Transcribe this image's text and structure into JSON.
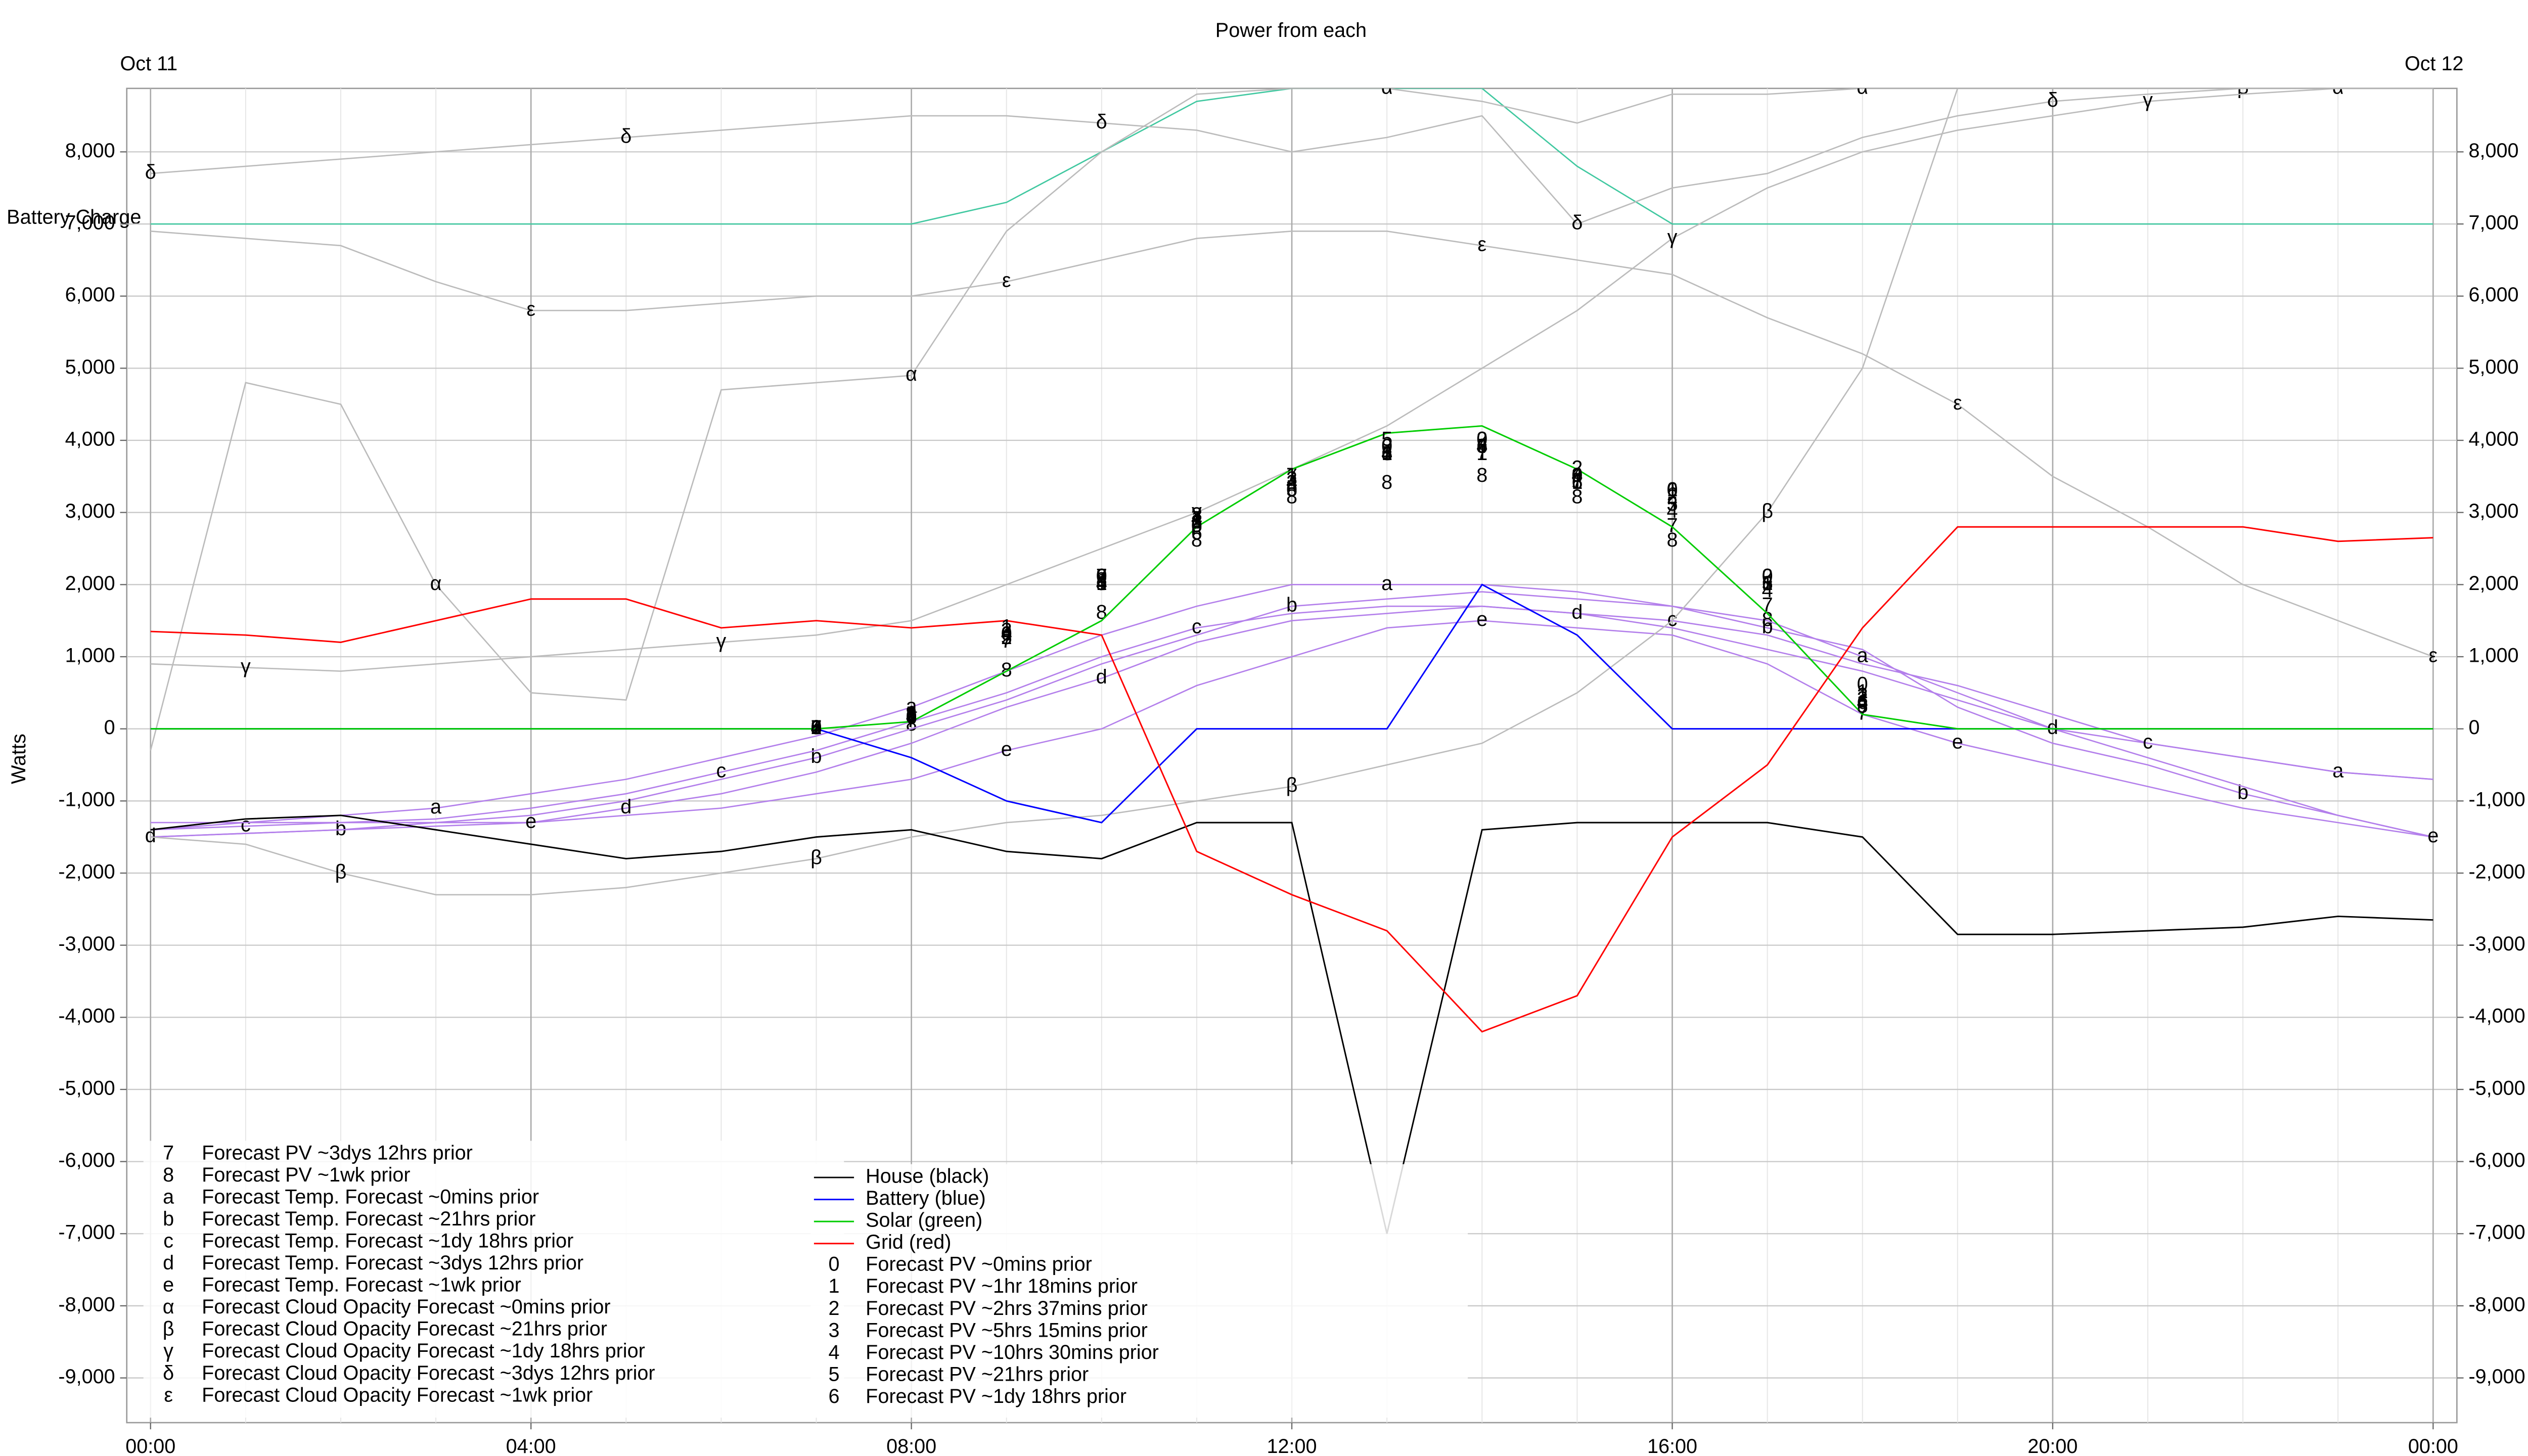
{
  "chart_data": {
    "type": "line",
    "title": "Power from each",
    "date_labels": [
      "Oct 11",
      "Oct 12"
    ],
    "y_label": "Watts",
    "x": [
      0,
      1,
      2,
      3,
      4,
      5,
      6,
      7,
      8,
      9,
      10,
      11,
      12,
      13,
      14,
      15,
      16,
      17,
      18,
      19,
      20,
      21,
      22,
      23,
      24
    ],
    "xlim": [
      -0.25,
      24.25
    ],
    "xticks": [
      {
        "value": 0,
        "label": "00:00"
      },
      {
        "value": 4,
        "label": "04:00"
      },
      {
        "value": 8,
        "label": "08:00"
      },
      {
        "value": 12,
        "label": "12:00"
      },
      {
        "value": 16,
        "label": "16:00"
      },
      {
        "value": 20,
        "label": "20:00"
      },
      {
        "value": 24,
        "label": "00:00"
      }
    ],
    "ylim": [
      -9620,
      8880
    ],
    "yticks": [
      {
        "value": -9000,
        "label": "-9,000"
      },
      {
        "value": -8000,
        "label": "-8,000"
      },
      {
        "value": -7000,
        "label": "-7,000"
      },
      {
        "value": -6000,
        "label": "-6,000"
      },
      {
        "value": -5000,
        "label": "-5,000"
      },
      {
        "value": -4000,
        "label": "-4,000"
      },
      {
        "value": -3000,
        "label": "-3,000"
      },
      {
        "value": -2000,
        "label": "-2,000"
      },
      {
        "value": -1000,
        "label": "-1,000"
      },
      0,
      {
        "value": 1000,
        "label": "1,000"
      },
      {
        "value": 2000,
        "label": "2,000"
      },
      {
        "value": 3000,
        "label": "3,000"
      },
      {
        "value": 4000,
        "label": "4,000"
      },
      {
        "value": 5000,
        "label": "5,000"
      },
      {
        "value": 6000,
        "label": "6,000"
      },
      {
        "value": 7000,
        "label": "7,000"
      },
      {
        "value": 8000,
        "label": "8,000"
      }
    ],
    "grid": true,
    "battery_charge": {
      "label": "Battery Charge",
      "color": "#40c8a0",
      "values": [
        7000,
        7000,
        7000,
        7000,
        7000,
        7000,
        7000,
        7000,
        7000,
        7300,
        8000,
        8700,
        8880,
        8880,
        8880,
        7800,
        7000,
        7000,
        7000,
        7000,
        7000,
        7000,
        7000,
        7000,
        7000
      ]
    },
    "series": [
      {
        "name": "Forecast PV ~3dys 12hrs prior",
        "symbol": "7",
        "color": "#000000",
        "style": "symbol",
        "values": [
          null,
          null,
          null,
          null,
          null,
          null,
          null,
          0,
          100,
          1200,
          2100,
          2900,
          3500,
          3800,
          3800,
          3400,
          2800,
          1700,
          200,
          null,
          null,
          null,
          null,
          null,
          null
        ]
      },
      {
        "name": "Forecast PV ~1wk prior",
        "symbol": "8",
        "color": "#000000",
        "style": "symbol",
        "values": [
          null,
          null,
          null,
          null,
          null,
          null,
          null,
          0,
          50,
          800,
          1600,
          2600,
          3200,
          3400,
          3500,
          3200,
          2600,
          1500,
          300,
          null,
          null,
          null,
          null,
          null,
          null
        ]
      },
      {
        "name": "Forecast Temp. Forecast ~0mins prior",
        "symbol": "a",
        "color": "#b37feb",
        "style": "line",
        "values": [
          -1400,
          -1300,
          -1200,
          -1100,
          -900,
          -700,
          -400,
          -100,
          300,
          800,
          1300,
          1700,
          2000,
          2000,
          2000,
          1900,
          1700,
          1500,
          1000,
          500,
          0,
          -200,
          -400,
          -600,
          -700
        ]
      },
      {
        "name": "Forecast Temp. Forecast ~21hrs prior",
        "symbol": "b",
        "color": "#b37feb",
        "style": "line",
        "values": [
          -1500,
          -1450,
          -1400,
          -1300,
          -1200,
          -1000,
          -700,
          -400,
          0,
          400,
          900,
          1300,
          1700,
          1800,
          1900,
          1800,
          1700,
          1400,
          1100,
          300,
          -200,
          -500,
          -900,
          -1200,
          -1500
        ]
      },
      {
        "name": "Forecast Temp. Forecast ~1dy 18hrs prior",
        "symbol": "c",
        "color": "#b37feb",
        "style": "line",
        "values": [
          -1400,
          -1350,
          -1300,
          -1250,
          -1100,
          -900,
          -600,
          -300,
          100,
          500,
          1000,
          1400,
          1600,
          1700,
          1700,
          1600,
          1500,
          1300,
          900,
          600,
          200,
          -200,
          -400,
          -600,
          -700
        ]
      },
      {
        "name": "Forecast Temp. Forecast ~3dys 12hrs prior",
        "symbol": "d",
        "color": "#b37feb",
        "style": "line",
        "values": [
          -1500,
          -1450,
          -1400,
          -1350,
          -1300,
          -1100,
          -900,
          -600,
          -200,
          300,
          700,
          1200,
          1500,
          1600,
          1700,
          1600,
          1400,
          1100,
          800,
          400,
          0,
          -400,
          -800,
          -1200,
          -1500
        ]
      },
      {
        "name": "Forecast Temp. Forecast ~1wk prior",
        "symbol": "e",
        "color": "#b37feb",
        "style": "line",
        "values": [
          -1300,
          -1300,
          -1300,
          -1300,
          -1300,
          -1200,
          -1100,
          -900,
          -700,
          -300,
          0,
          600,
          1000,
          1400,
          1500,
          1400,
          1300,
          900,
          200,
          -200,
          -500,
          -800,
          -1100,
          -1300,
          -1500
        ]
      },
      {
        "name": "Forecast Cloud Opacity Forecast ~0mins prior",
        "symbol": "α",
        "color": "#bbbbbb",
        "style": "line",
        "values": [
          -300,
          4800,
          4500,
          2000,
          500,
          400,
          4700,
          4800,
          4900,
          6900,
          8000,
          8800,
          8880,
          8880,
          8700,
          8400,
          8800,
          8800,
          8880,
          8880,
          8880,
          8880,
          8880,
          8880,
          8880
        ]
      },
      {
        "name": "Forecast Cloud Opacity Forecast ~21hrs prior",
        "symbol": "β",
        "color": "#bbbbbb",
        "style": "line",
        "values": [
          -1500,
          -1600,
          -2000,
          -2300,
          -2300,
          -2200,
          -2000,
          -1800,
          -1500,
          -1300,
          -1200,
          -1000,
          -800,
          -500,
          -200,
          500,
          1500,
          3000,
          5000,
          8880,
          8880,
          8880,
          8880,
          8880,
          8880
        ]
      },
      {
        "name": "Forecast Cloud Opacity Forecast ~1dy 18hrs prior",
        "symbol": "γ",
        "color": "#bbbbbb",
        "style": "line",
        "values": [
          900,
          850,
          800,
          900,
          1000,
          1100,
          1200,
          1300,
          1500,
          2000,
          2500,
          3000,
          3600,
          4200,
          5000,
          5800,
          6800,
          7500,
          8000,
          8300,
          8500,
          8700,
          8800,
          8880,
          8880
        ]
      },
      {
        "name": "Forecast Cloud Opacity Forecast ~3dys 12hrs prior",
        "symbol": "δ",
        "color": "#bbbbbb",
        "style": "line",
        "values": [
          7700,
          7800,
          7900,
          8000,
          8100,
          8200,
          8300,
          8400,
          8500,
          8500,
          8400,
          8300,
          8000,
          8200,
          8500,
          7000,
          7500,
          7700,
          8200,
          8500,
          8700,
          8800,
          8880,
          8880,
          8880
        ]
      },
      {
        "name": "Forecast Cloud Opacity Forecast ~1wk prior",
        "symbol": "ε",
        "color": "#bbbbbb",
        "style": "line",
        "values": [
          6900,
          6800,
          6700,
          6200,
          5800,
          5800,
          5900,
          6000,
          6000,
          6200,
          6500,
          6800,
          6900,
          6900,
          6700,
          6500,
          6300,
          5700,
          5200,
          4500,
          3500,
          2800,
          2000,
          1500,
          1000
        ]
      },
      {
        "name": "House (black)",
        "color": "#000000",
        "style": "line",
        "values": [
          -1400,
          -1250,
          -1200,
          -1400,
          -1600,
          -1800,
          -1700,
          -1500,
          -1400,
          -1700,
          -1800,
          -1300,
          -1300,
          -7000,
          -1400,
          -1300,
          -1300,
          -1300,
          -1500,
          -2850,
          -2850,
          -2800,
          -2750,
          -2600,
          -2650
        ]
      },
      {
        "name": "Battery (blue)",
        "color": "#0000ff",
        "style": "line",
        "values": [
          0,
          0,
          0,
          0,
          0,
          0,
          0,
          0,
          -400,
          -1000,
          -1300,
          0,
          0,
          0,
          2000,
          1300,
          0,
          0,
          0,
          0,
          0,
          0,
          0,
          0,
          0
        ]
      },
      {
        "name": "Solar (green)",
        "color": "#00cc00",
        "style": "line",
        "values": [
          0,
          0,
          0,
          0,
          0,
          0,
          0,
          0,
          100,
          800,
          1500,
          2800,
          3600,
          4100,
          4200,
          3600,
          2800,
          1600,
          200,
          0,
          0,
          0,
          0,
          0,
          0
        ]
      },
      {
        "name": "Grid (red)",
        "color": "#ff0000",
        "style": "line",
        "values": [
          1350,
          1300,
          1200,
          1500,
          1800,
          1800,
          1400,
          1500,
          1400,
          1500,
          1300,
          -1700,
          -2300,
          -2800,
          -4200,
          -3700,
          -1500,
          -500,
          1400,
          2800,
          2800,
          2800,
          2800,
          2600,
          2650
        ]
      },
      {
        "name": "Forecast PV ~0mins prior",
        "symbol": "0",
        "color": "#000000",
        "style": "symbol",
        "values": [
          null,
          null,
          null,
          null,
          null,
          null,
          null,
          0,
          150,
          1300,
          2100,
          2800,
          3300,
          3900,
          4000,
          3500,
          3300,
          2100,
          600,
          null,
          null,
          null,
          null,
          null,
          null
        ]
      },
      {
        "name": "Forecast PV ~1hr 18mins prior",
        "symbol": "1",
        "color": "#000000",
        "style": "symbol",
        "values": [
          null,
          null,
          null,
          null,
          null,
          null,
          null,
          0,
          200,
          1400,
          2000,
          2900,
          3500,
          3800,
          3800,
          3400,
          3300,
          2000,
          500,
          null,
          null,
          null,
          null,
          null,
          null
        ]
      },
      {
        "name": "Forecast PV ~2hrs 37mins prior",
        "symbol": "2",
        "color": "#000000",
        "style": "symbol",
        "values": [
          null,
          null,
          null,
          null,
          null,
          null,
          null,
          0,
          180,
          1250,
          2100,
          2850,
          3400,
          3900,
          4000,
          3600,
          3200,
          2100,
          450,
          null,
          null,
          null,
          null,
          null,
          null
        ]
      },
      {
        "name": "Forecast PV ~5hrs 15mins prior",
        "symbol": "3",
        "color": "#000000",
        "style": "symbol",
        "values": [
          null,
          null,
          null,
          null,
          null,
          null,
          null,
          0,
          170,
          1350,
          2050,
          2950,
          3450,
          3800,
          3900,
          3500,
          3100,
          2000,
          400,
          null,
          null,
          null,
          null,
          null,
          null
        ]
      },
      {
        "name": "Forecast PV ~10hrs 30mins prior",
        "symbol": "4",
        "color": "#000000",
        "style": "symbol",
        "values": [
          null,
          null,
          null,
          null,
          null,
          null,
          null,
          0,
          160,
          1300,
          2000,
          2900,
          3400,
          3800,
          3900,
          3500,
          3000,
          1900,
          350,
          null,
          null,
          null,
          null,
          null,
          null
        ]
      },
      {
        "name": "Forecast PV ~21hrs prior",
        "symbol": "5",
        "color": "#000000",
        "style": "symbol",
        "values": [
          null,
          null,
          null,
          null,
          null,
          null,
          null,
          0,
          190,
          1250,
          2000,
          2800,
          3300,
          4000,
          3900,
          3400,
          3100,
          2000,
          300,
          null,
          null,
          null,
          null,
          null,
          null
        ]
      },
      {
        "name": "Forecast PV ~1dy 18hrs prior",
        "symbol": "6",
        "color": "#000000",
        "style": "symbol",
        "values": [
          null,
          null,
          null,
          null,
          null,
          null,
          null,
          0,
          140,
          1300,
          2100,
          2700,
          3300,
          3800,
          3900,
          3400,
          3300,
          2000,
          350,
          null,
          null,
          null,
          null,
          null,
          null
        ]
      }
    ]
  }
}
